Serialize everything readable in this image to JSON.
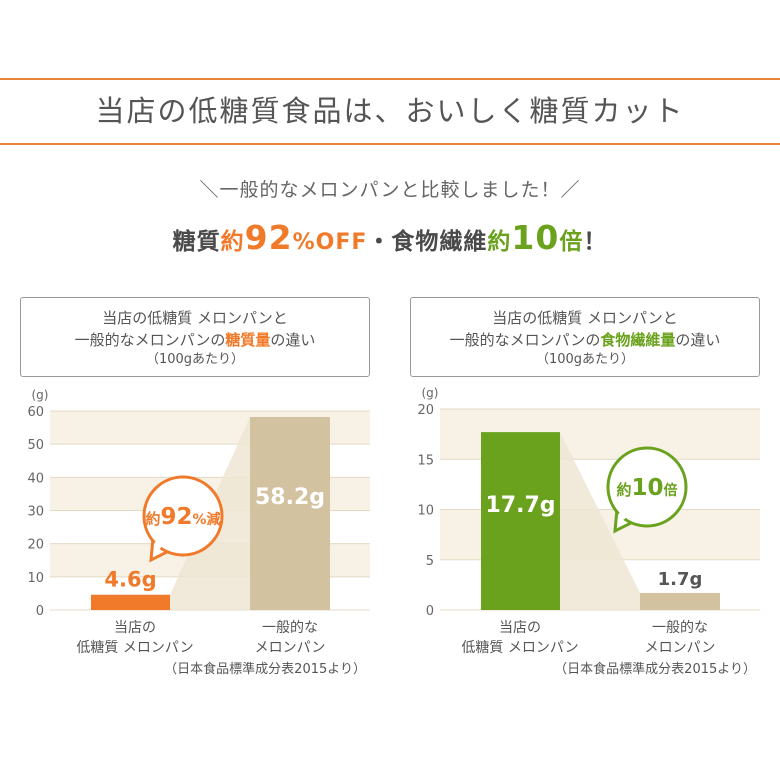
{
  "header": {
    "title": "当店の低糖質食品は、おいしく糖質カット"
  },
  "subtitle": "＼一般的なメロンパンと比較しました！／",
  "headline": {
    "part1": "糖質",
    "part2": "約",
    "part3": "92",
    "part4": "%OFF",
    "part5": "・食物繊維",
    "part6": "約",
    "part7": "10",
    "part8": "倍",
    "part9": "！"
  },
  "colors": {
    "accent_orange": "#f07a2a",
    "accent_green": "#6aa21e",
    "bar_beige": "#d2c2a0",
    "band": "#f7f1e6"
  },
  "panels": [
    {
      "line1": "当店の低糖質 メロンパンと",
      "line2_pre": "一般的なメロンパンの",
      "line2_hl": "糖質量",
      "line2_post": "の違い",
      "line3": "（100gあたり）",
      "badge_pre": "約",
      "badge_num": "92",
      "badge_post": "%減",
      "source": "（日本食品標準成分表2015より）"
    },
    {
      "line1": "当店の低糖質 メロンパンと",
      "line2_pre": "一般的なメロンパンの",
      "line2_hl": "食物繊維量",
      "line2_post": "の違い",
      "line3": "（100gあたり）",
      "badge_pre": "約",
      "badge_num": "10",
      "badge_post": "倍",
      "source": "（日本食品標準成分表2015より）"
    }
  ],
  "chart_data": [
    {
      "type": "bar",
      "categories": [
        [
          "当店の",
          "低糖質 メロンパン"
        ],
        [
          "一般的な",
          "メロンパン"
        ]
      ],
      "values": [
        4.6,
        58.2
      ],
      "value_labels": [
        "4.6g",
        "58.2g"
      ],
      "ylabel": "(g)",
      "ylim": [
        0,
        60
      ],
      "yticks": [
        "0",
        "10",
        "20",
        "30",
        "40",
        "50",
        "60"
      ],
      "colors": [
        "#f07a2a",
        "#d2c2a0"
      ],
      "grid": true
    },
    {
      "type": "bar",
      "categories": [
        [
          "当店の",
          "低糖質 メロンパン"
        ],
        [
          "一般的な",
          "メロンパン"
        ]
      ],
      "values": [
        17.7,
        1.7
      ],
      "value_labels": [
        "17.7g",
        "1.7g"
      ],
      "ylabel": "(g)",
      "ylim": [
        0,
        20
      ],
      "yticks": [
        "0",
        "5",
        "10",
        "15",
        "20"
      ],
      "colors": [
        "#6aa21e",
        "#d2c2a0"
      ],
      "grid": true
    }
  ]
}
